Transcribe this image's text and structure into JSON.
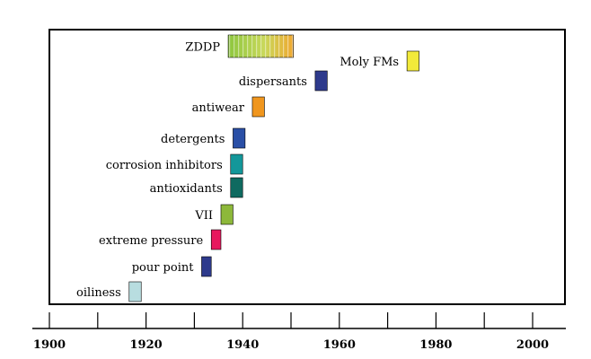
{
  "chart_data": {
    "type": "timeline",
    "title": "",
    "xlabel": "",
    "ylabel": "",
    "xlim": [
      1900,
      2007
    ],
    "x_ticks": [
      1900,
      1910,
      1920,
      1930,
      1940,
      1950,
      1960,
      1970,
      1980,
      1990,
      2000
    ],
    "x_tick_labels": [
      {
        "value": 1900,
        "label": "1900"
      },
      {
        "value": 1920,
        "label": "1920"
      },
      {
        "value": 1940,
        "label": "1940"
      },
      {
        "value": 1960,
        "label": "1960"
      },
      {
        "value": 1980,
        "label": "1980"
      },
      {
        "value": 2000,
        "label": "2000"
      }
    ],
    "grid": false,
    "legend": "none",
    "series": [
      {
        "label": "oiliness",
        "start": 1916.5,
        "end": 1919,
        "color": "#b8dde0"
      },
      {
        "label": "pour point",
        "start": 1931.5,
        "end": 1933.5,
        "color": "#2e3a8c"
      },
      {
        "label": "extreme pressure",
        "start": 1933.5,
        "end": 1935.5,
        "color": "#e8185e"
      },
      {
        "label": "VII",
        "start": 1935.5,
        "end": 1938,
        "color": "#8db83a"
      },
      {
        "label": "antioxidants",
        "start": 1937.5,
        "end": 1940,
        "color": "#0f6a60"
      },
      {
        "label": "corrosion inhibitors",
        "start": 1937.5,
        "end": 1940,
        "color": "#13979a"
      },
      {
        "label": "detergents",
        "start": 1938,
        "end": 1940.5,
        "color": "#2a4fa6"
      },
      {
        "label": "antiwear",
        "start": 1942,
        "end": 1944.5,
        "color": "#f0961e"
      },
      {
        "label": "ZDDP",
        "start": 1937,
        "end": 1950.5,
        "color": "#8dc63f",
        "gradient_to": "#f0a830"
      },
      {
        "label": "dispersants",
        "start": 1955,
        "end": 1957.5,
        "color": "#2e3a8c"
      },
      {
        "label": "Moly  FMs",
        "start": 1974,
        "end": 1976.5,
        "color": "#f2ea3a"
      }
    ]
  }
}
